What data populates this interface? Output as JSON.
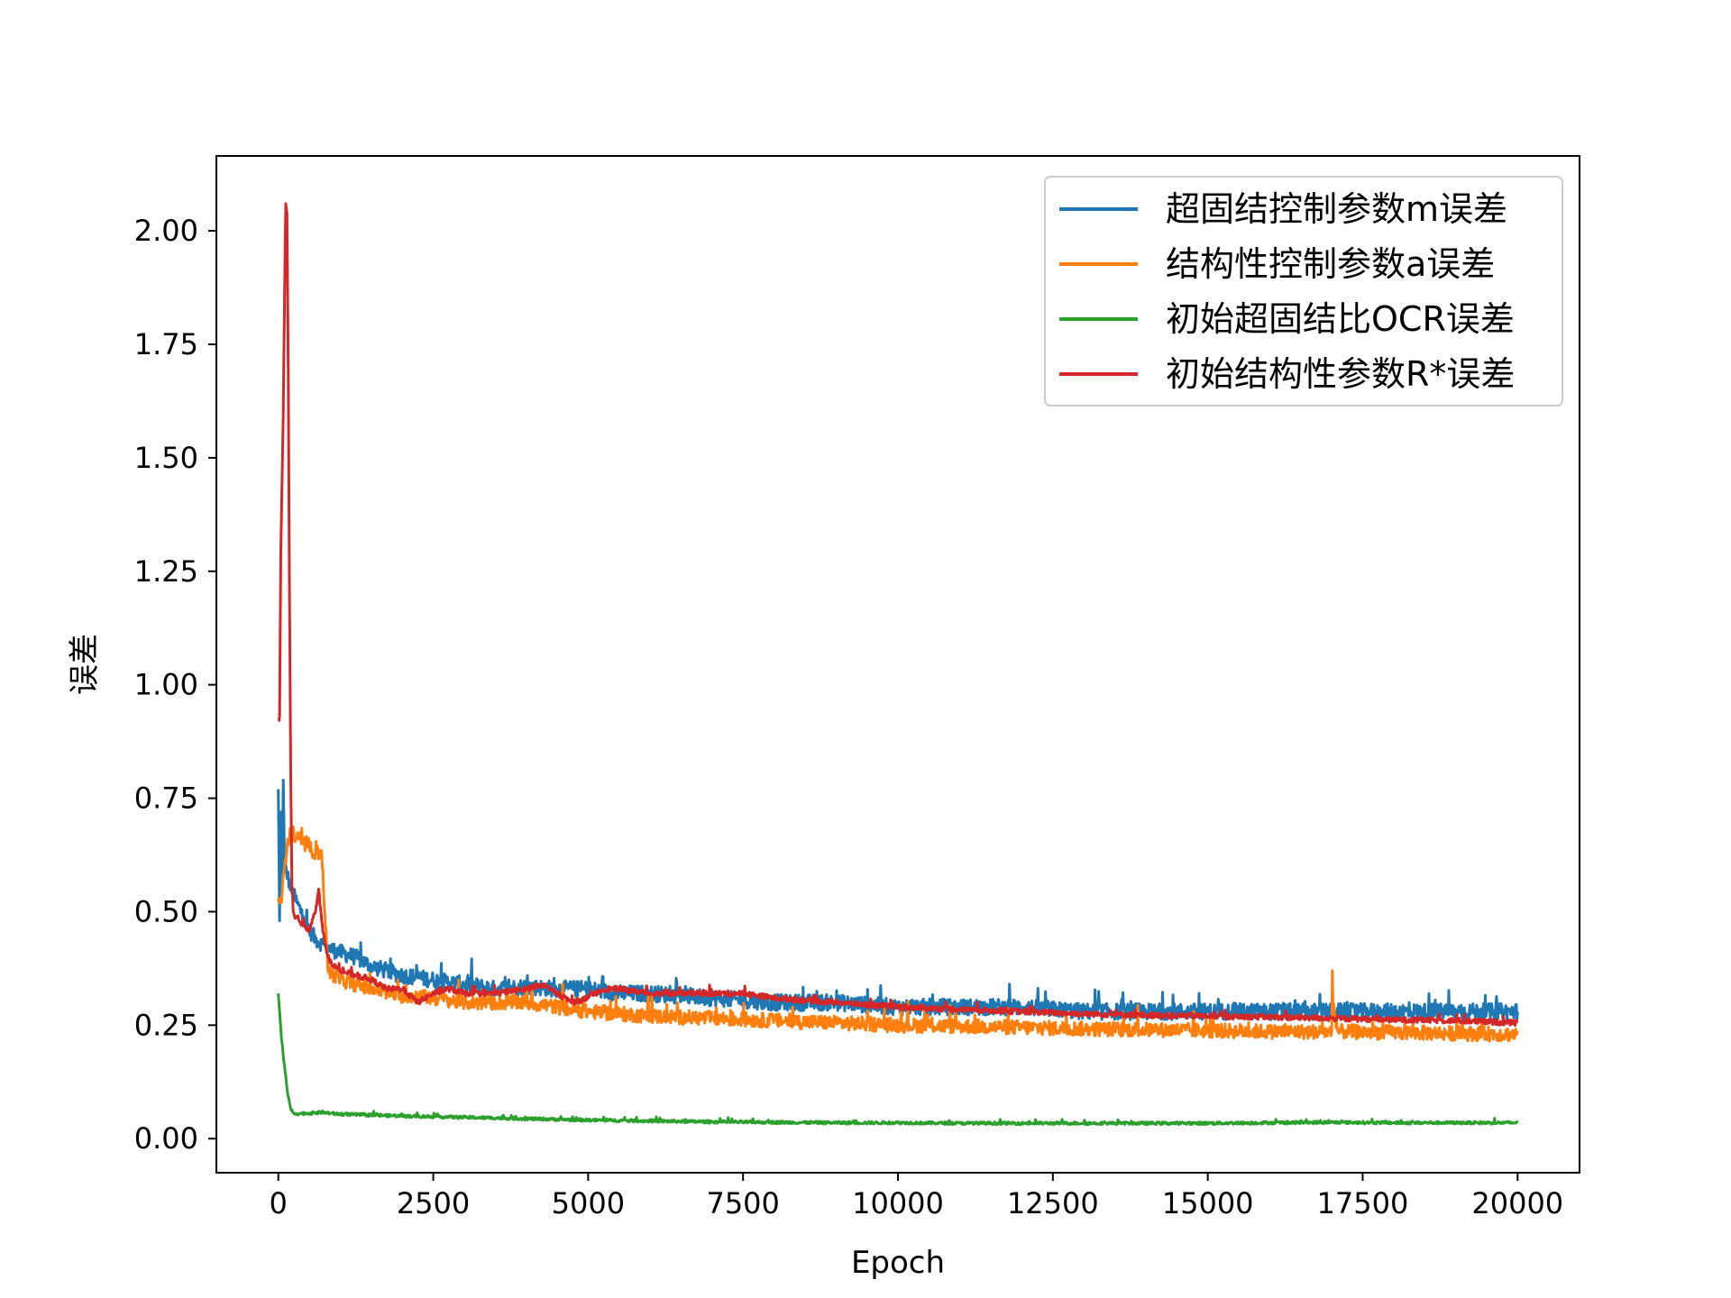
{
  "chart_data": {
    "type": "line",
    "xlabel": "Epoch",
    "ylabel": "误差",
    "xlim": [
      -1000,
      21000
    ],
    "ylim": [
      -0.075,
      2.165
    ],
    "x_ticks": [
      0,
      2500,
      5000,
      7500,
      10000,
      12500,
      15000,
      17500,
      20000
    ],
    "x_tick_labels": [
      "0",
      "2500",
      "5000",
      "7500",
      "10000",
      "12500",
      "15000",
      "17500",
      "20000"
    ],
    "y_ticks": [
      0.0,
      0.25,
      0.5,
      0.75,
      1.0,
      1.25,
      1.5,
      1.75,
      2.0
    ],
    "y_tick_labels": [
      "0.00",
      "0.25",
      "0.50",
      "0.75",
      "1.00",
      "1.25",
      "1.50",
      "1.75",
      "2.00"
    ],
    "grid": false,
    "legend_position": "top-right",
    "series": [
      {
        "name": "超固结控制参数m误差",
        "color": "#1f77b4",
        "x": [
          0,
          20,
          40,
          60,
          80,
          100,
          150,
          200,
          300,
          400,
          500,
          600,
          700,
          800,
          1000,
          1250,
          1500,
          2000,
          2500,
          3000,
          3500,
          4000,
          4500,
          5000,
          5500,
          6000,
          7000,
          8000,
          9000,
          10000,
          11000,
          12000,
          13000,
          14000,
          15000,
          16000,
          17000,
          18000,
          19000,
          20000
        ],
        "y": [
          0.77,
          0.48,
          0.72,
          0.55,
          0.79,
          0.6,
          0.58,
          0.55,
          0.52,
          0.49,
          0.46,
          0.44,
          0.43,
          0.42,
          0.41,
          0.4,
          0.38,
          0.36,
          0.35,
          0.34,
          0.33,
          0.335,
          0.33,
          0.33,
          0.32,
          0.32,
          0.31,
          0.3,
          0.3,
          0.29,
          0.29,
          0.29,
          0.28,
          0.28,
          0.28,
          0.28,
          0.28,
          0.28,
          0.28,
          0.28
        ],
        "noise": 0.018
      },
      {
        "name": "结构性控制参数a误差",
        "color": "#ff7f0e",
        "x": [
          0,
          50,
          100,
          150,
          200,
          300,
          400,
          500,
          600,
          700,
          750,
          800,
          900,
          1000,
          1250,
          1500,
          2000,
          2500,
          3000,
          3500,
          4000,
          4500,
          5000,
          5500,
          6000,
          7000,
          8000,
          9000,
          10000,
          11000,
          12000,
          13000,
          14000,
          15000,
          16000,
          17000,
          17010,
          17020,
          17100,
          18000,
          19000,
          20000
        ],
        "y": [
          0.53,
          0.52,
          0.6,
          0.66,
          0.67,
          0.66,
          0.65,
          0.64,
          0.63,
          0.63,
          0.5,
          0.37,
          0.36,
          0.35,
          0.34,
          0.33,
          0.315,
          0.31,
          0.3,
          0.3,
          0.3,
          0.29,
          0.28,
          0.275,
          0.27,
          0.265,
          0.26,
          0.255,
          0.25,
          0.248,
          0.245,
          0.242,
          0.24,
          0.238,
          0.236,
          0.235,
          0.37,
          0.3,
          0.236,
          0.234,
          0.232,
          0.23
        ],
        "noise": 0.016
      },
      {
        "name": "初始超固结比OCR误差",
        "color": "#2ca02c",
        "x": [
          0,
          50,
          100,
          150,
          200,
          250,
          300,
          500,
          700,
          1000,
          2000,
          3000,
          4000,
          5000,
          6000,
          7000,
          8000,
          9000,
          10000,
          11000,
          12000,
          13000,
          14000,
          15000,
          16000,
          17000,
          18000,
          19000,
          20000
        ],
        "y": [
          0.32,
          0.22,
          0.16,
          0.1,
          0.065,
          0.055,
          0.055,
          0.056,
          0.058,
          0.054,
          0.05,
          0.047,
          0.044,
          0.041,
          0.039,
          0.037,
          0.036,
          0.035,
          0.035,
          0.034,
          0.034,
          0.034,
          0.034,
          0.034,
          0.035,
          0.036,
          0.035,
          0.035,
          0.035
        ],
        "noise": 0.003
      },
      {
        "name": "初始结构性参数R*误差",
        "color": "#d62728",
        "x": [
          0,
          20,
          40,
          60,
          80,
          100,
          120,
          140,
          160,
          180,
          200,
          220,
          240,
          260,
          300,
          400,
          500,
          600,
          650,
          700,
          750,
          800,
          900,
          1000,
          1250,
          1500,
          1750,
          2000,
          2250,
          2500,
          2750,
          3000,
          3500,
          4000,
          4250,
          4500,
          4750,
          5000,
          5250,
          5500,
          6000,
          7000,
          7500,
          8000,
          9000,
          10000,
          11000,
          12000,
          13000,
          14000,
          15000,
          16000,
          17000,
          18000,
          19000,
          20000
        ],
        "y": [
          0.92,
          0.93,
          1.3,
          1.45,
          1.6,
          1.85,
          2.06,
          2.04,
          1.7,
          1.2,
          0.8,
          0.55,
          0.5,
          0.49,
          0.49,
          0.47,
          0.46,
          0.5,
          0.55,
          0.48,
          0.43,
          0.4,
          0.38,
          0.37,
          0.36,
          0.35,
          0.33,
          0.33,
          0.3,
          0.32,
          0.33,
          0.32,
          0.32,
          0.33,
          0.34,
          0.32,
          0.3,
          0.31,
          0.33,
          0.33,
          0.32,
          0.32,
          0.32,
          0.31,
          0.3,
          0.29,
          0.285,
          0.28,
          0.275,
          0.272,
          0.27,
          0.268,
          0.265,
          0.262,
          0.26,
          0.255
        ],
        "noise": 0.006
      }
    ]
  }
}
